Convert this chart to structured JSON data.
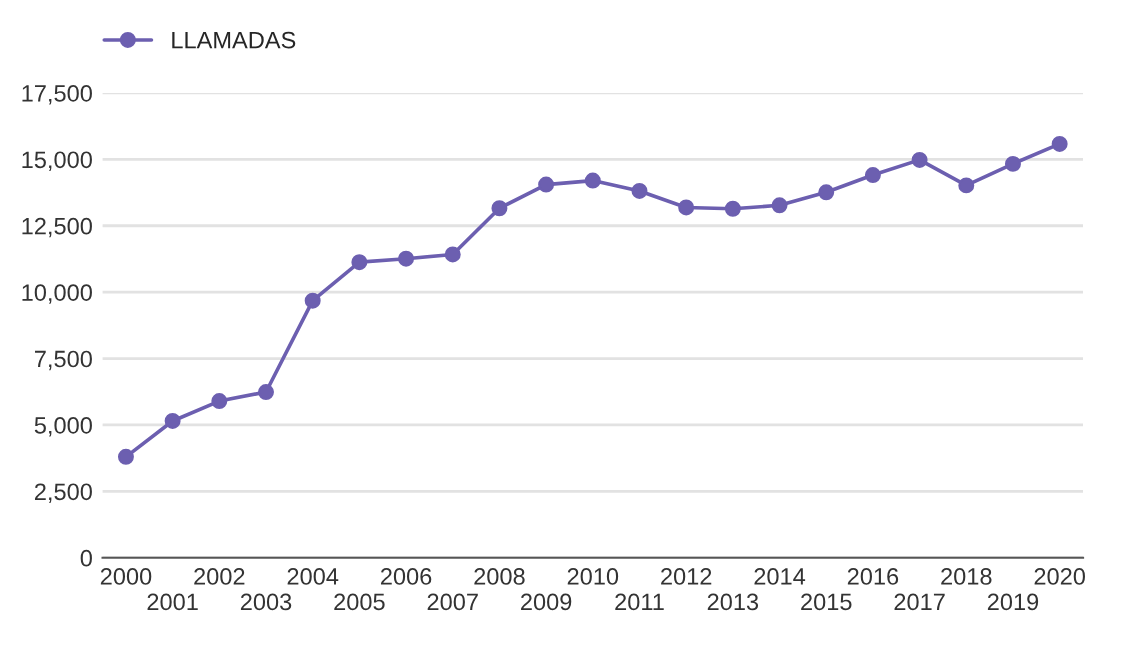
{
  "chart_data": {
    "type": "line",
    "categories": [
      "2000",
      "2001",
      "2002",
      "2003",
      "2004",
      "2005",
      "2006",
      "2007",
      "2008",
      "2009",
      "2010",
      "2011",
      "2012",
      "2013",
      "2014",
      "2015",
      "2016",
      "2017",
      "2018",
      "2019",
      "2020"
    ],
    "series": [
      {
        "name": "LLAMADAS",
        "color": "#6c5fb0",
        "values": [
          3800,
          5150,
          5900,
          6240,
          9680,
          11130,
          11260,
          11420,
          13160,
          14050,
          14200,
          13810,
          13190,
          13140,
          13270,
          13760,
          14410,
          14980,
          14020,
          14830,
          15580
        ]
      }
    ],
    "ylim": [
      0,
      17500
    ],
    "yticks": [
      0,
      {
        "value": 2500,
        "label": "2,500"
      },
      {
        "value": 5000,
        "label": "5,000"
      },
      {
        "value": 7500,
        "label": "7,500"
      },
      {
        "value": 10000,
        "label": "10,000"
      },
      {
        "value": 12500,
        "label": "12,500"
      },
      {
        "value": 15000,
        "label": "15,000"
      },
      {
        "value": 17500,
        "label": "17,500"
      }
    ],
    "grid": "y",
    "legend": "top left",
    "marker": "circle",
    "line_style": "solid"
  }
}
